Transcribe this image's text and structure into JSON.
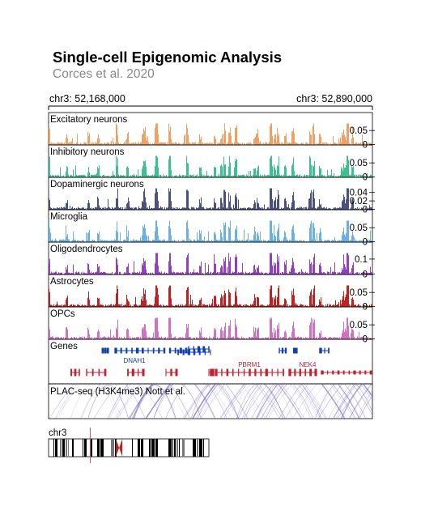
{
  "header": {
    "title": "Single-cell Epigenomic Analysis",
    "subtitle": "Corces et al. 2020"
  },
  "region": {
    "start_label": "chr3: 52,168,000",
    "end_label": "chr3: 52,890,000"
  },
  "chart_data": {
    "type": "area",
    "tracks": [
      {
        "name": "Excitatory neurons",
        "color": "#f0a060",
        "max": 0.075,
        "ticks": [
          "0.05",
          "0"
        ],
        "tick_values": [
          0.05,
          0
        ]
      },
      {
        "name": "Inhibitory neurons",
        "color": "#3cc090",
        "max": 0.075,
        "ticks": [
          "0.05",
          "0"
        ],
        "tick_values": [
          0.05,
          0
        ]
      },
      {
        "name": "Dopaminergic neurons",
        "color": "#4a5080",
        "max": 0.05,
        "ticks": [
          "0.04",
          "0.02",
          "0"
        ],
        "tick_values": [
          0.04,
          0.02,
          0
        ]
      },
      {
        "name": "Microglia",
        "color": "#6ab0e0",
        "max": 0.075,
        "ticks": [
          "0.05",
          "0"
        ],
        "tick_values": [
          0.05,
          0
        ]
      },
      {
        "name": "Oligodendrocytes",
        "color": "#9040c0",
        "max": 0.14,
        "ticks": [
          "0.1",
          "0"
        ],
        "tick_values": [
          0.1,
          0
        ]
      },
      {
        "name": "Astrocytes",
        "color": "#c02020",
        "max": 0.075,
        "ticks": [
          "0.05",
          "0"
        ],
        "tick_values": [
          0.05,
          0
        ]
      },
      {
        "name": "OPCs",
        "color": "#d070c0",
        "max": 0.075,
        "ticks": [
          "0.05",
          "0"
        ],
        "tick_values": [
          0.05,
          0
        ]
      }
    ],
    "genes_track": {
      "name": "Genes",
      "labels": [
        {
          "text": "DNAH1",
          "color": "#1040b0",
          "pos": 0.265
        },
        {
          "text": "PBRM1",
          "color": "#c02030",
          "pos": 0.62
        },
        {
          "text": "NEK4",
          "color": "#c02030",
          "pos": 0.8
        }
      ],
      "plus_strand_color": "#1040b0",
      "minus_strand_color": "#c02030"
    },
    "plac_track": {
      "name": "PLAC-seq (H3K4me3) Nott et al.",
      "color": "#7060c0"
    },
    "ideogram": {
      "label": "chr3",
      "highlight_color": "#e05050",
      "highlight_pos": 0.26
    }
  }
}
